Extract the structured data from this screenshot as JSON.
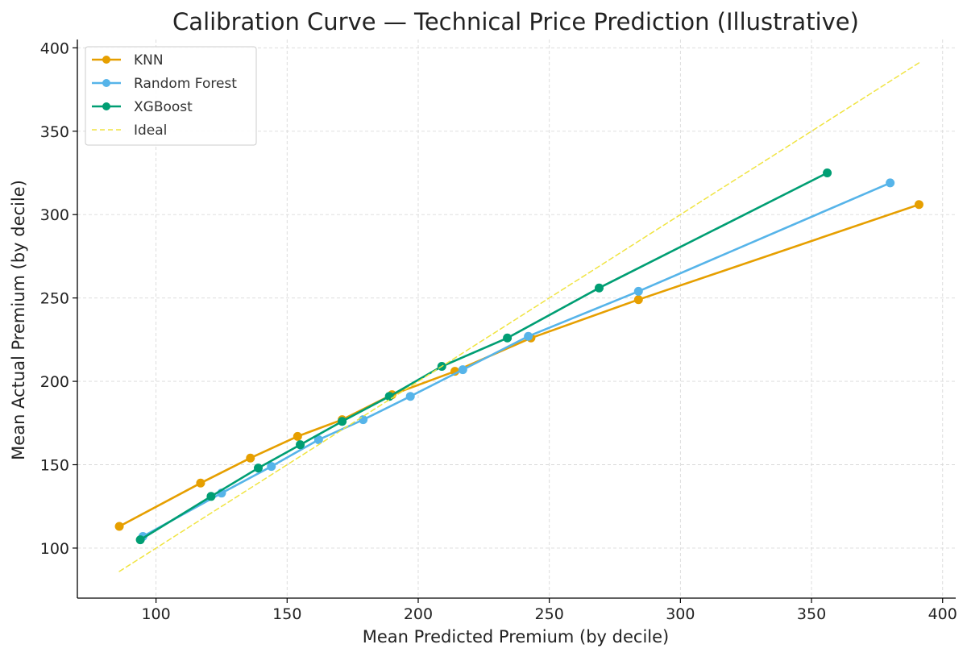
{
  "chart_data": {
    "type": "line",
    "title": "Calibration Curve — Technical Price Prediction (Illustrative)",
    "xlabel": "Mean Predicted Premium (by decile)",
    "ylabel": "Mean Actual Premium (by decile)",
    "xlim": [
      70,
      405
    ],
    "ylim": [
      70,
      405
    ],
    "xticks": [
      100,
      150,
      200,
      250,
      300,
      350,
      400
    ],
    "yticks": [
      100,
      150,
      200,
      250,
      300,
      350,
      400
    ],
    "grid": true,
    "legend_position": "top-left",
    "series": [
      {
        "name": "KNN",
        "color": "#E69F00",
        "marker": "circle",
        "points": [
          [
            86,
            113
          ],
          [
            117,
            139
          ],
          [
            136,
            154
          ],
          [
            154,
            167
          ],
          [
            171,
            177
          ],
          [
            190,
            192
          ],
          [
            214,
            206
          ],
          [
            243,
            226
          ],
          [
            284,
            249
          ],
          [
            391,
            306
          ]
        ]
      },
      {
        "name": "Random Forest",
        "color": "#56B4E9",
        "marker": "circle",
        "points": [
          [
            95,
            107
          ],
          [
            125,
            133
          ],
          [
            144,
            149
          ],
          [
            162,
            165
          ],
          [
            179,
            177
          ],
          [
            197,
            191
          ],
          [
            217,
            207
          ],
          [
            242,
            227
          ],
          [
            284,
            254
          ],
          [
            380,
            319
          ]
        ]
      },
      {
        "name": "XGBoost",
        "color": "#009E73",
        "marker": "circle",
        "points": [
          [
            94,
            105
          ],
          [
            121,
            131
          ],
          [
            139,
            148
          ],
          [
            155,
            162
          ],
          [
            171,
            176
          ],
          [
            189,
            191
          ],
          [
            209,
            209
          ],
          [
            234,
            226
          ],
          [
            269,
            256
          ],
          [
            356,
            325
          ]
        ]
      },
      {
        "name": "Ideal",
        "color": "#F0E442",
        "style": "dashed",
        "points": [
          [
            86,
            86
          ],
          [
            391,
            391
          ]
        ]
      }
    ]
  }
}
